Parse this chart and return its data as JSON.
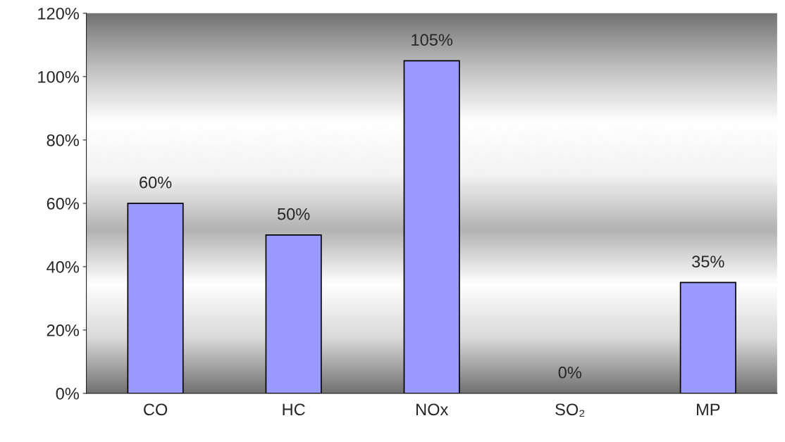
{
  "chart_data": {
    "type": "bar",
    "categories": [
      "CO",
      "HC",
      "NOx",
      "SO₂",
      "MP"
    ],
    "values": [
      60,
      50,
      105,
      0,
      35
    ],
    "value_labels": [
      "60%",
      "50%",
      "105%",
      "0%",
      "35%"
    ],
    "color": "#9999ff",
    "ylim": [
      0,
      120
    ],
    "yticks": [
      {
        "value": 0,
        "label": "0%"
      },
      {
        "value": 20,
        "label": "20%"
      },
      {
        "value": 40,
        "label": "40%"
      },
      {
        "value": 60,
        "label": "60%"
      },
      {
        "value": 80,
        "label": "80%"
      },
      {
        "value": 100,
        "label": "100%"
      },
      {
        "value": 120,
        "label": "120%"
      }
    ],
    "grid": false,
    "legend": false
  }
}
